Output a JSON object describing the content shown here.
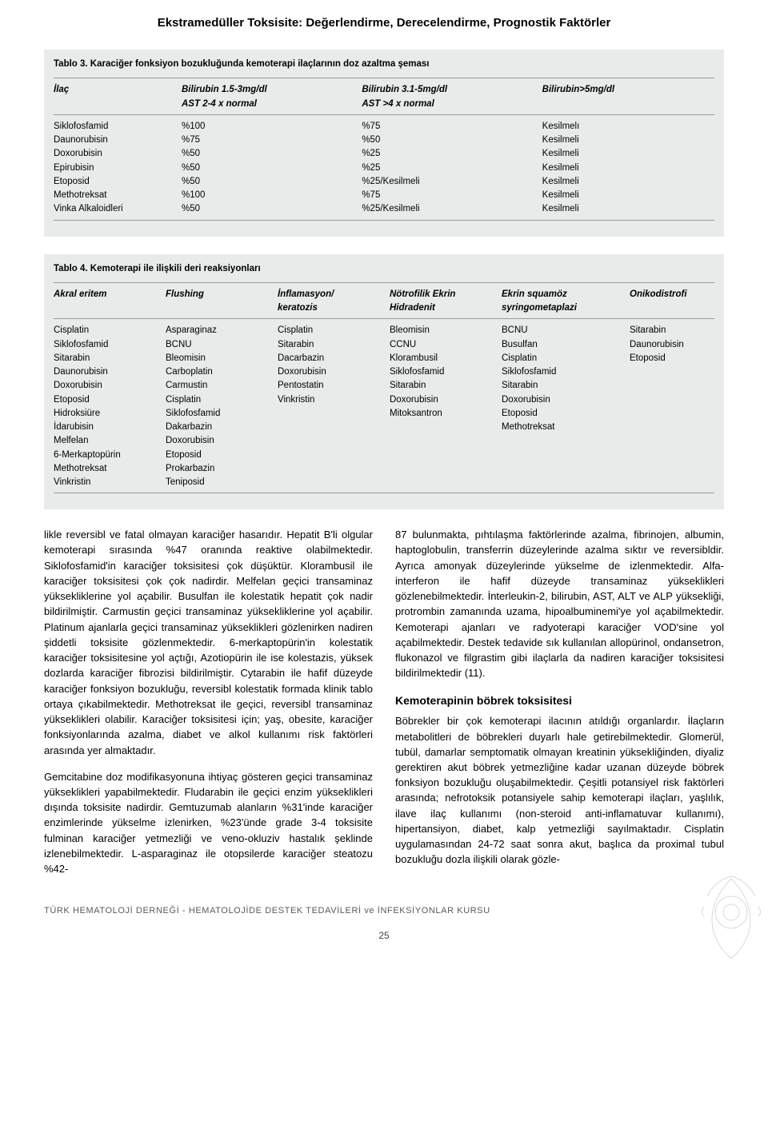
{
  "page": {
    "header_title": "Ekstramedüller Toksisite: Değerlendirme, Derecelendirme, Prognostik Faktörler",
    "page_number": "25",
    "footer_text": "TÜRK HEMATOLOJİ DERNEĞİ - HEMATOLOJİDE DESTEK TEDAVİLERİ ve İNFEKSİYONLAR KURSU"
  },
  "colors": {
    "background": "#ffffff",
    "table_bg": "#e9eaea",
    "text": "#000000",
    "rule": "#9a9a9a",
    "footer_text": "#5a5a5a",
    "ornament": "#7b7b7b"
  },
  "table3": {
    "title": "Tablo 3. Karaciğer fonksiyon bozukluğunda kemoterapi ilaçlarının doz azaltma şeması",
    "headers": {
      "c0": "İlaç",
      "c1": "Bilirubin 1.5-3mg/dl",
      "c1b": "AST 2-4 x normal",
      "c2": "Bilirubin 3.1-5mg/dl",
      "c2b": "AST >4 x normal",
      "c3": "Bilirubin>5mg/dl"
    },
    "rows": [
      {
        "c0": "Siklofosfamid",
        "c1": "%100",
        "c2": "%75",
        "c3": "Kesilmelı"
      },
      {
        "c0": "Daunorubisin",
        "c1": "%75",
        "c2": "%50",
        "c3": "Kesilmeli"
      },
      {
        "c0": "Doxorubisin",
        "c1": "%50",
        "c2": "%25",
        "c3": "Kesilmeli"
      },
      {
        "c0": "Epirubisin",
        "c1": "%50",
        "c2": "%25",
        "c3": "Kesilmeli"
      },
      {
        "c0": "Etoposid",
        "c1": "%50",
        "c2": "%25/Kesilmeli",
        "c3": "Kesilmeli"
      },
      {
        "c0": "Methotreksat",
        "c1": "%100",
        "c2": "%75",
        "c3": "Kesilmeli"
      },
      {
        "c0": "Vinka Alkaloidleri",
        "c1": "%50",
        "c2": "%25/Kesilmeli",
        "c3": "Kesilmeli"
      }
    ]
  },
  "table4": {
    "title": "Tablo 4. Kemoterapi ile ilişkili deri reaksiyonları",
    "headers": {
      "c0": "Akral eritem",
      "c1": "Flushing",
      "c2": "İnflamasyon/",
      "c2b": "keratozis",
      "c3": "Nötrofilik Ekrin",
      "c3b": "Hidradenit",
      "c4": "Ekrin squamöz",
      "c4b": "syringometaplazi",
      "c5": "Onikodistrofi"
    },
    "rows": [
      {
        "c0": "Cisplatin",
        "c1": "Asparaginaz",
        "c2": "Cisplatin",
        "c3": "Bleomisin",
        "c4": "BCNU",
        "c5": "Sitarabin"
      },
      {
        "c0": "Siklofosfamid",
        "c1": "BCNU",
        "c2": "Sitarabin",
        "c3": "CCNU",
        "c4": "Busulfan",
        "c5": "Daunorubisin"
      },
      {
        "c0": "Sitarabin",
        "c1": "Bleomisin",
        "c2": "Dacarbazin",
        "c3": "Klorambusil",
        "c4": "Cisplatin",
        "c5": "Etoposid"
      },
      {
        "c0": "Daunorubisin",
        "c1": "Carboplatin",
        "c2": "Doxorubisin",
        "c3": "Siklofosfamid",
        "c4": "Siklofosfamid",
        "c5": ""
      },
      {
        "c0": "Doxorubisin",
        "c1": "Carmustin",
        "c2": "Pentostatin",
        "c3": "Sitarabin",
        "c4": "Sitarabin",
        "c5": ""
      },
      {
        "c0": "Etoposid",
        "c1": "Cisplatin",
        "c2": "Vinkristin",
        "c3": "Doxorubisin",
        "c4": "Doxorubisin",
        "c5": ""
      },
      {
        "c0": "Hidroksiüre",
        "c1": "Siklofosfamid",
        "c2": "",
        "c3": "Mitoksantron",
        "c4": "Etoposid",
        "c5": ""
      },
      {
        "c0": "İdarubisin",
        "c1": "Dakarbazin",
        "c2": "",
        "c3": "",
        "c4": "Methotreksat",
        "c5": ""
      },
      {
        "c0": "Melfelan",
        "c1": "Doxorubisin",
        "c2": "",
        "c3": "",
        "c4": "",
        "c5": ""
      },
      {
        "c0": "6-Merkaptopürin",
        "c1": "Etoposid",
        "c2": "",
        "c3": "",
        "c4": "",
        "c5": ""
      },
      {
        "c0": "Methotreksat",
        "c1": "Prokarbazin",
        "c2": "",
        "c3": "",
        "c4": "",
        "c5": ""
      },
      {
        "c0": "Vinkristin",
        "c1": "Teniposid",
        "c2": "",
        "c3": "",
        "c4": "",
        "c5": ""
      }
    ]
  },
  "body_text": {
    "p1": "likle reversibl ve fatal olmayan karaciğer hasarıdır. Hepatit B'li olgular kemoterapi sırasında %47 oranında reaktive olabilmektedir. Siklofosfamid'in karaciğer toksisitesi çok düşüktür. Klorambusil ile karaciğer toksisitesi çok çok nadirdir. Melfelan geçici transaminaz yüksekliklerine yol açabilir. Busulfan ile kolestatik hepatit çok nadir bildirilmiştir. Carmustin geçici transaminaz yüksekliklerine yol açabilir. Platinum ajanlarla geçici transaminaz yükseklikleri gözlenirken nadiren şiddetli toksisite gözlenmektedir. 6-merkaptopürin'in kolestatik karaciğer toksisitesine yol açtığı, Azotiopürin ile ise kolestazis, yüksek dozlarda karaciğer fibrozisi bildirilmiştir. Cytarabin ile hafif düzeyde karaciğer fonksiyon bozukluğu, reversibl kolestatik formada klinik tablo ortaya çıkabilmektedir. Methotreksat ile geçici, reversibl transaminaz yükseklikleri olabilir. Karaciğer toksisitesi için; yaş, obesite, karaciğer fonksiyonlarında azalma, diabet ve alkol kullanımı risk faktörleri arasında yer almaktadır.",
    "p2": "Gemcitabine doz modifikasyonuna ihtiyaç gösteren geçici transaminaz yükseklikleri yapabilmektedir. Fludarabin ile geçici enzim yükseklikleri dışında toksisite nadirdir. Gemtuzumab alanların %31'inde karaciğer enzimlerinde yükselme izlenirken, %23'ünde grade 3-4 toksisite fulminan karaciğer yetmezliği ve veno-okluziv hastalık şeklinde izlenebilmektedir. L-asparaginaz ile otopsilerde karaciğer steatozu %42-",
    "p3": "87 bulunmakta, pıhtılaşma faktörlerinde azalma, fibrinojen, albumin, haptoglobulin, transferrin düzeylerinde azalma sıktır ve reversibldir. Ayrıca amonyak düzeylerinde yükselme de izlenmektedir. Alfa-interferon ile hafif düzeyde transaminaz yükseklikleri gözlenebilmektedir. İnterleukin-2, bilirubin, AST, ALT ve ALP yüksekliği, protrombin zamanında uzama, hipoalbuminemi'ye yol açabilmektedir. Kemoterapi ajanları ve radyoterapi karaciğer VOD'sine yol açabilmektedir. Destek tedavide sık kullanılan allopürinol, ondansetron, flukonazol ve filgrastim gibi ilaçlarla da nadiren karaciğer toksisitesi bildirilmektedir (11).",
    "h2": "Kemoterapinin böbrek toksisitesi",
    "p4": "Böbrekler bir çok kemoterapi ilacının atıldığı organlardır. İlaçların metabolitleri de böbrekleri duyarlı hale getirebilmektedir. Glomerül, tubül, damarlar semptomatik olmayan kreatinin yüksekliğinden, diyaliz gerektiren akut böbrek yetmezliğine kadar uzanan düzeyde böbrek fonksiyon bozukluğu oluşabilmektedir. Çeşitli potansiyel risk faktörleri arasında; nefrotoksik potansiyele sahip kemoterapi ilaçları, yaşlılık, ilave ilaç kullanımı (non-steroid anti-inflamatuvar kullanımı), hipertansiyon, diabet, kalp yetmezliği sayılmaktadır. Cisplatin uygulamasından 24-72 saat sonra akut, başlıca da proximal tubul bozukluğu dozla ilişkili olarak gözle-"
  }
}
